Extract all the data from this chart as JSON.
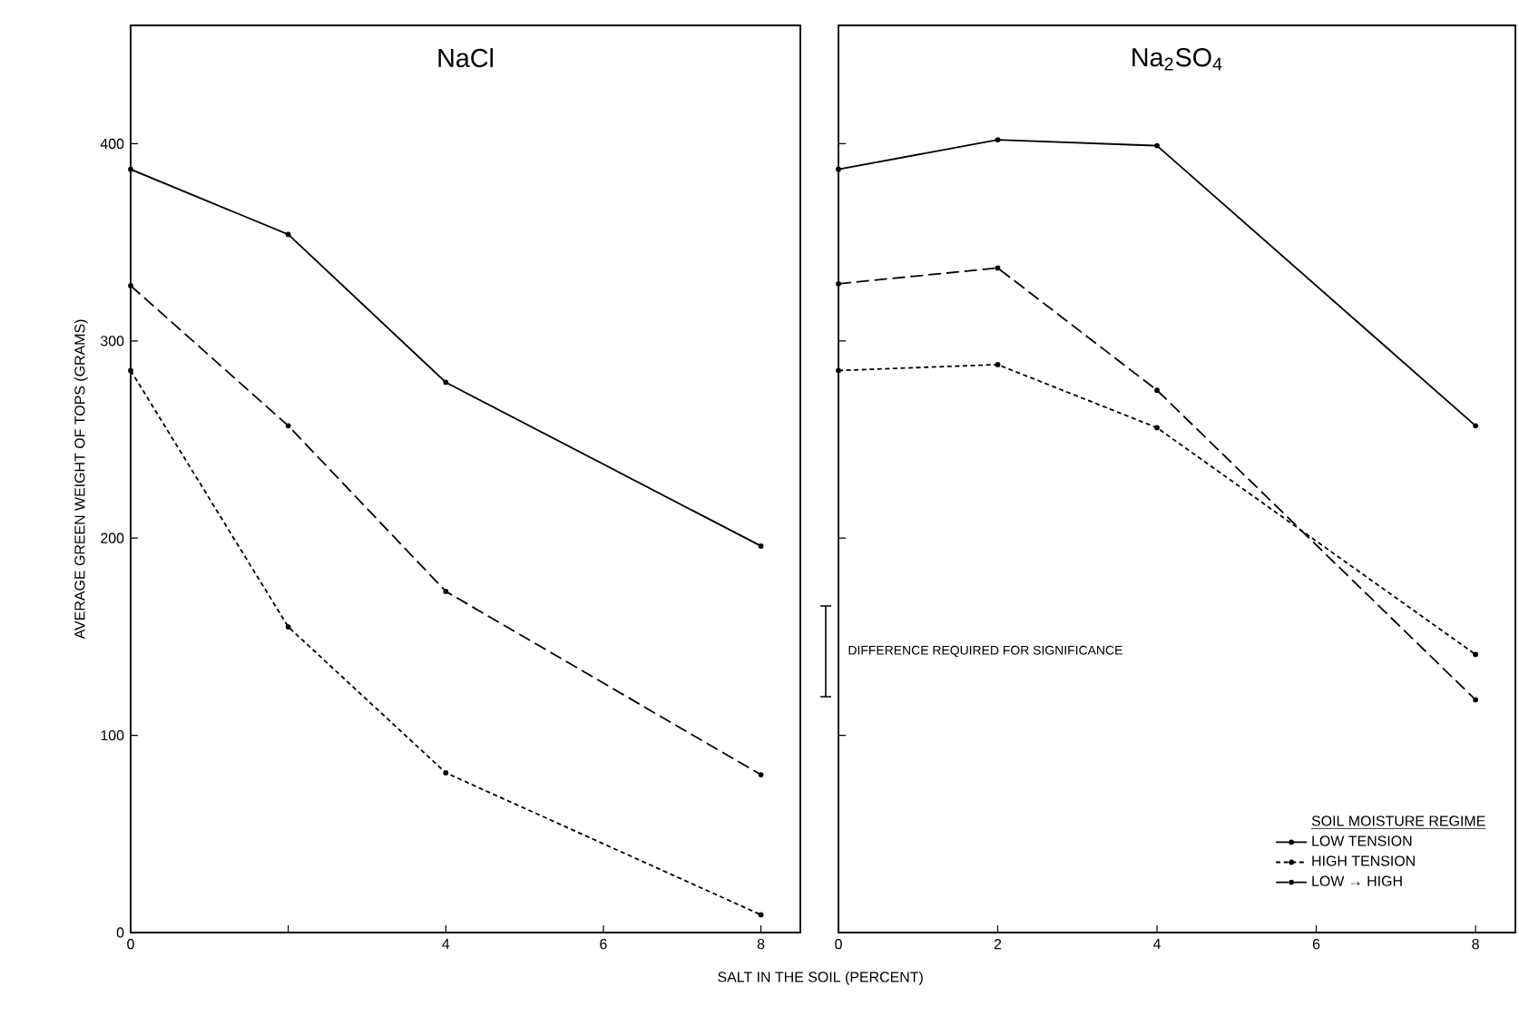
{
  "chart_data": [
    {
      "type": "line",
      "title": "NaCl",
      "xlabel": "SALT IN THE SOIL (PERCENT)",
      "ylabel": "AVERAGE GREEN WEIGHT OF TOPS (GRAMS)",
      "x": [
        0,
        2,
        4,
        8
      ],
      "marker": "circle",
      "series": [
        {
          "color": "#000000",
          "line_style": "solid",
          "values": [
            387,
            354,
            279,
            196
          ]
        },
        {
          "color": "#000000",
          "line_style": "dotted",
          "values": [
            285,
            155,
            81,
            9
          ]
        },
        {
          "color": "#000000",
          "line_style": "dashed",
          "values": [
            328,
            257,
            173,
            80
          ]
        }
      ],
      "xlim": [
        0,
        8.5
      ],
      "ylim": [
        0,
        460
      ],
      "xticks": [
        0,
        {
          "value": 2,
          "label": null
        },
        4,
        6,
        8
      ],
      "yticks": [
        0,
        100,
        200,
        300,
        400
      ],
      "annotations": [
        "DIFFERENCE REQUIRED FOR SIGNIFICANCE"
      ]
    },
    {
      "type": "line",
      "title": "Na$_{2}$SO$_{4}$",
      "legend_title": "SOIL MOISTURE REGIME",
      "legend": "bottom right",
      "x": [
        0,
        2,
        4,
        8
      ],
      "marker": "circle",
      "series": [
        {
          "name": "LOW TENSION",
          "color": "#000000",
          "line_style": "solid",
          "values": [
            387,
            402,
            399,
            257
          ]
        },
        {
          "name": "HIGH TENSION",
          "color": "#000000",
          "line_style": "dotted",
          "values": [
            285,
            288,
            256,
            141
          ]
        },
        {
          "name": "LOW → HIGH",
          "color": "#000000",
          "line_style": "dashed",
          "values": [
            329,
            337,
            275,
            118
          ]
        }
      ],
      "xlim": [
        0,
        8.5
      ],
      "ylim": [
        0,
        460
      ],
      "xticks": [
        0,
        2,
        4,
        6,
        8
      ],
      "yticks": [
        0,
        100,
        200,
        300,
        400
      ],
      "tick_labels": "x"
    }
  ]
}
